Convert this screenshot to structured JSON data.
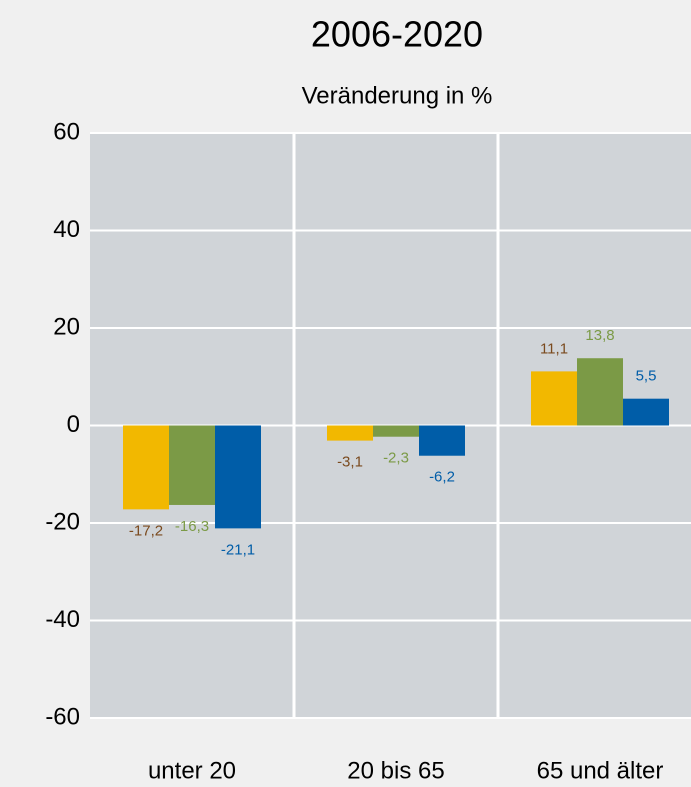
{
  "chart_data": {
    "type": "bar",
    "title": "2006-2020",
    "subtitle": "Veränderung in %",
    "categories": [
      "unter 20",
      "20 bis 65",
      "65 und älter"
    ],
    "series": [
      {
        "color": "#f2b800",
        "label_color": "#7a4a1e",
        "values": [
          -17.2,
          -3.1,
          11.1
        ],
        "value_labels": [
          "-17,2",
          "-3,1",
          "11,1"
        ]
      },
      {
        "color": "#7b9a46",
        "label_color": "#7b9a46",
        "values": [
          -16.3,
          -2.3,
          13.8
        ],
        "value_labels": [
          "-16,3",
          "-2,3",
          "13,8"
        ]
      },
      {
        "color": "#005da8",
        "label_color": "#005da8",
        "values": [
          -21.1,
          -6.2,
          5.5
        ],
        "value_labels": [
          "-21,1",
          "-6,2",
          "5,5"
        ]
      }
    ],
    "ylim": [
      -60,
      60
    ],
    "yticks": [
      -60,
      -40,
      -20,
      0,
      20,
      40,
      60
    ],
    "grid": true
  }
}
